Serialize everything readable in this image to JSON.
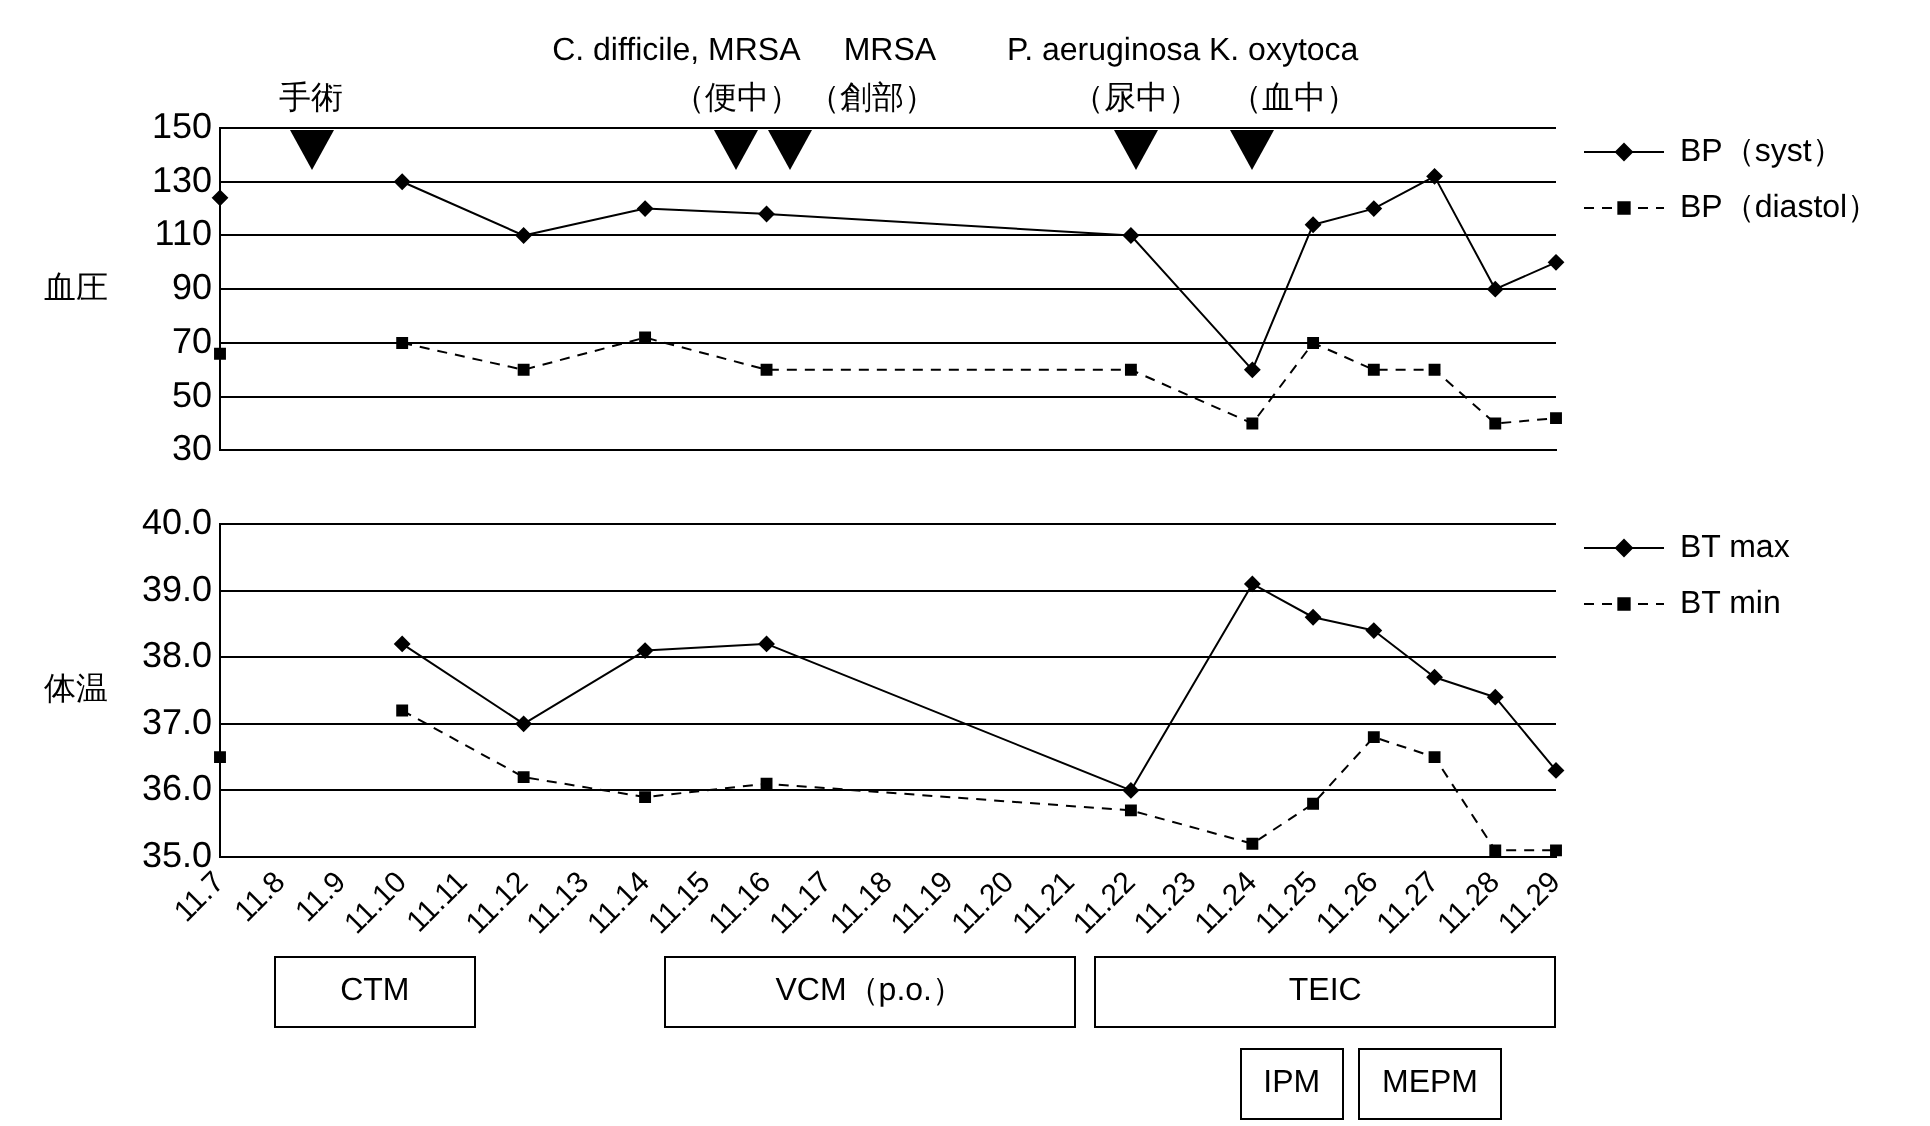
{
  "chart_data": [
    {
      "type": "line",
      "ylabel": "血圧",
      "categories": [
        "11.7",
        "11.8",
        "11.9",
        "11.10",
        "11.11",
        "11.12",
        "11.13",
        "11.14",
        "11.15",
        "11.16",
        "11.17",
        "11.18",
        "11.19",
        "11.20",
        "11.21",
        "11.22",
        "11.23",
        "11.24",
        "11.25",
        "11.26",
        "11.27",
        "11.28",
        "11.29"
      ],
      "series": [
        {
          "name": "BP（syst）",
          "color": "#000000",
          "marker": "diamond",
          "line_style": "solid",
          "values": [
            null,
            null,
            null,
            130,
            null,
            110,
            null,
            120,
            null,
            118,
            null,
            null,
            null,
            null,
            null,
            110,
            null,
            60,
            114,
            120,
            132,
            90,
            100
          ]
        },
        {
          "name": "BP（diastol）",
          "color": "#000000",
          "marker": "square",
          "line_style": "dashed",
          "values": [
            null,
            null,
            null,
            70,
            null,
            60,
            null,
            72,
            null,
            60,
            null,
            null,
            null,
            null,
            null,
            60,
            null,
            40,
            70,
            60,
            60,
            40,
            42
          ]
        },
        {
          "type": "scatter",
          "color": "#000000",
          "marker": "diamond",
          "x": [
            "11.7"
          ],
          "values": [
            124
          ]
        },
        {
          "type": "scatter",
          "color": "#000000",
          "marker": "square",
          "x": [
            "11.7"
          ],
          "values": [
            66
          ]
        }
      ],
      "ylim": [
        30,
        150
      ],
      "yticks": [
        30,
        50,
        70,
        90,
        110,
        130,
        150
      ],
      "grid": "y",
      "legend": "right",
      "tick_labels": "y",
      "annotations": [
        "手術",
        "C. difficile, MRSA\n（便中）",
        "MRSA\n（創部）",
        "P. aeruginosa\n（尿中）",
        "K. oxytoca\n（血中）"
      ]
    },
    {
      "type": "line",
      "ylabel": "体温",
      "categories": [
        "11.7",
        "11.8",
        "11.9",
        "11.10",
        "11.11",
        "11.12",
        "11.13",
        "11.14",
        "11.15",
        "11.16",
        "11.17",
        "11.18",
        "11.19",
        "11.20",
        "11.21",
        "11.22",
        "11.23",
        "11.24",
        "11.25",
        "11.26",
        "11.27",
        "11.28",
        "11.29"
      ],
      "series": [
        {
          "name": "BT max",
          "color": "#000000",
          "marker": "diamond",
          "line_style": "solid",
          "values": [
            null,
            null,
            null,
            38.2,
            null,
            37.0,
            null,
            38.1,
            null,
            38.2,
            null,
            null,
            null,
            null,
            null,
            36.0,
            null,
            39.1,
            38.6,
            38.4,
            37.7,
            37.4,
            36.3
          ]
        },
        {
          "name": "BT min",
          "color": "#000000",
          "marker": "square",
          "line_style": "dashed",
          "values": [
            null,
            null,
            null,
            37.2,
            null,
            36.2,
            null,
            35.9,
            null,
            36.1,
            null,
            null,
            null,
            null,
            null,
            35.7,
            null,
            35.2,
            35.8,
            36.8,
            36.5,
            35.1,
            35.1
          ]
        },
        {
          "type": "scatter",
          "color": "#000000",
          "marker": "square",
          "x": [
            "11.7"
          ],
          "values": [
            36.5
          ]
        }
      ],
      "ylim": [
        35,
        40
      ],
      "yticks": [
        {
          "value": 35,
          "label": "35.0"
        },
        {
          "value": 36,
          "label": "36.0"
        },
        {
          "value": 37,
          "label": "37.0"
        },
        {
          "value": 38,
          "label": "38.0"
        },
        {
          "value": 39,
          "label": "39.0"
        },
        {
          "value": 40,
          "label": "40.0"
        }
      ],
      "grid": "y",
      "legend": "right",
      "annotations": [
        "CTM",
        "VCM（p.o.）",
        "TEIC",
        "IPM",
        "MEPM"
      ]
    }
  ]
}
